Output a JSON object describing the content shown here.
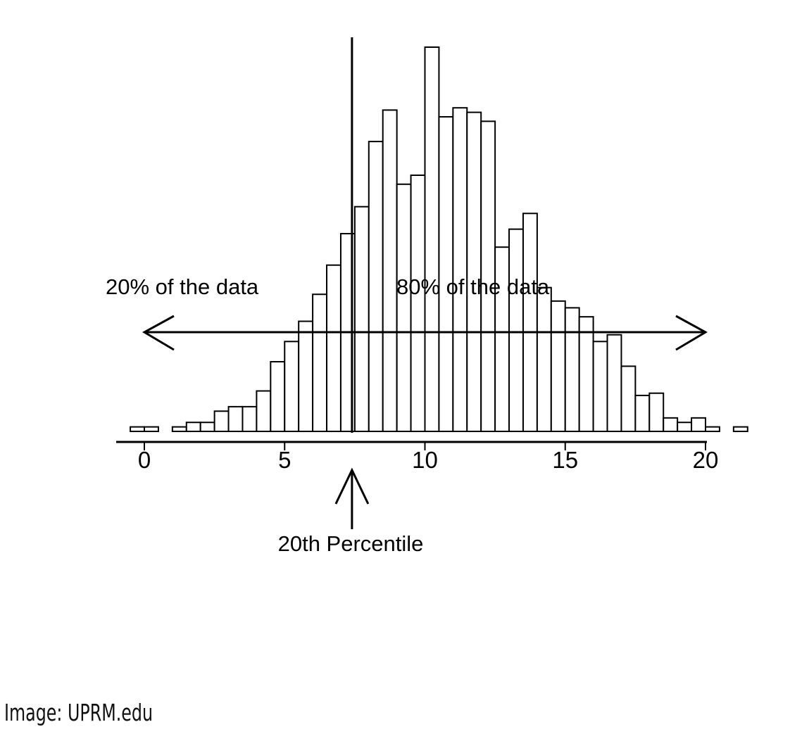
{
  "chart_data": {
    "type": "bar",
    "title": "",
    "xlabel": "",
    "ylabel": "",
    "xlim": [
      -0.5,
      20
    ],
    "bin_width": 0.5,
    "bins_start": -0.5,
    "values": [
      2,
      2,
      0,
      2,
      4,
      4,
      9,
      11,
      11,
      18,
      31,
      40,
      49,
      61,
      74,
      88,
      100,
      129,
      143,
      110,
      114,
      171,
      140,
      144,
      142,
      138,
      82,
      90,
      97,
      64,
      58,
      55,
      51,
      40,
      43,
      29,
      16,
      17,
      6,
      4,
      6,
      2,
      0,
      2
    ],
    "x_ticks": [
      0,
      5,
      10,
      15,
      20
    ],
    "percentile_marker": {
      "x": 7.4,
      "label": "20th Percentile"
    },
    "annotations": {
      "left": "20% of the data",
      "right": "80% of the data"
    },
    "grid": false,
    "legend": "none",
    "bar_fill": "#ffffff",
    "bar_stroke": "#000000"
  },
  "credit": "Image: UPRM.edu"
}
